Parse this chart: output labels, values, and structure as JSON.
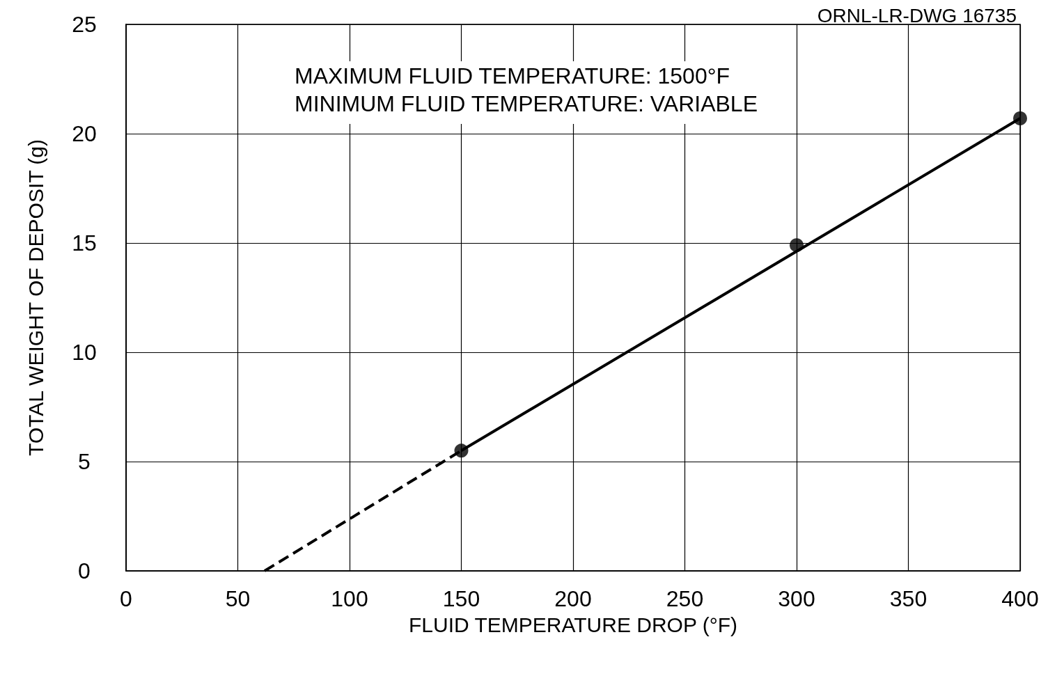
{
  "chart_data": {
    "type": "scatter",
    "xlabel": "FLUID TEMPERATURE DROP (°F)",
    "ylabel": "TOTAL WEIGHT OF DEPOSIT (g)",
    "annotations": [
      "ORNL-LR-DWG 16735",
      "MAXIMUM FLUID TEMPERATURE: 1500°F",
      "MINIMUM FLUID TEMPERATURE: VARIABLE"
    ],
    "series": [
      {
        "color": "#000000",
        "x": [
          150,
          300,
          400
        ],
        "values": [
          5.5,
          14.9,
          20.7
        ],
        "marker": "circle"
      },
      {
        "type": "line",
        "color": "#000000",
        "x": [
          150,
          400
        ],
        "values": [
          5.5,
          20.7
        ],
        "line_style": "solid",
        "marker": "none"
      },
      {
        "type": "line",
        "color": "#000000",
        "x": [
          62,
          150
        ],
        "values": [
          0,
          5.5
        ],
        "line_style": "dashed",
        "marker": "none"
      }
    ],
    "xlim": [
      0,
      400
    ],
    "xticks": [
      0,
      50,
      100,
      150,
      200,
      250,
      300,
      350,
      400
    ],
    "ylim": [
      0,
      25
    ],
    "yticks": [
      0,
      5,
      10,
      15,
      20,
      25
    ],
    "grid": true
  }
}
